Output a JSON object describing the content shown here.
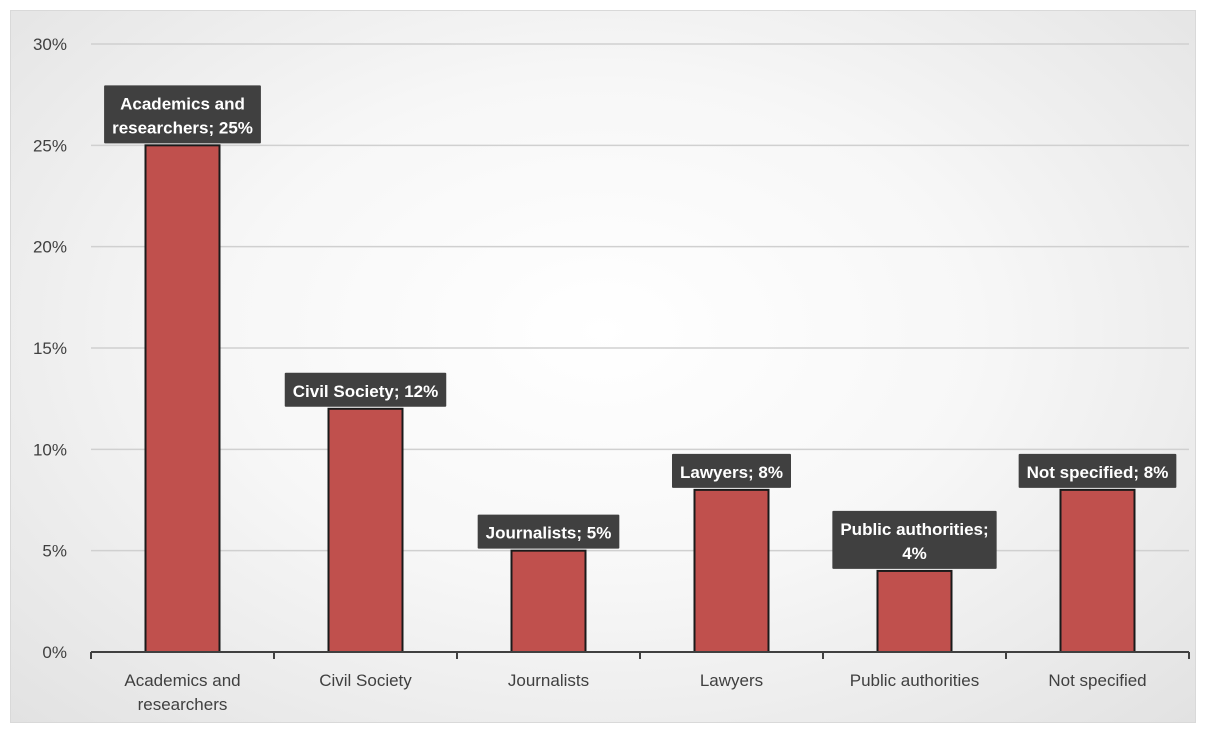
{
  "chart_data": {
    "type": "bar",
    "title": "",
    "xlabel": "",
    "ylabel": "",
    "categories": [
      "Academics and researchers",
      "Civil Society",
      "Journalists",
      "Lawyers",
      "Public authorities",
      "Not specified"
    ],
    "category_label_lines": [
      [
        "Academics and",
        "researchers"
      ],
      [
        "Civil Society"
      ],
      [
        "Journalists"
      ],
      [
        "Lawyers"
      ],
      [
        "Public authorities"
      ],
      [
        "Not specified"
      ]
    ],
    "values": [
      25,
      12,
      5,
      8,
      4,
      8
    ],
    "data_labels": [
      [
        "Academics and",
        "researchers; 25%"
      ],
      [
        "Civil Society; 12%"
      ],
      [
        "Journalists; 5%"
      ],
      [
        "Lawyers; 8%"
      ],
      [
        "Public authorities;",
        "4%"
      ],
      [
        "Not specified; 8%"
      ]
    ],
    "ylim": [
      0,
      30
    ],
    "yticks": [
      0,
      5,
      10,
      15,
      20,
      25,
      30
    ],
    "ytick_labels": [
      "0%",
      "5%",
      "10%",
      "15%",
      "20%",
      "25%",
      "30%"
    ],
    "grid": true,
    "legend": "none",
    "colors": {
      "bar": "#c0504d",
      "bar_edge": "#1a1a1a",
      "label_box": "#404040",
      "label_text": "#ffffff",
      "gridline": "#d0d0d0",
      "axis": "#404040"
    }
  }
}
